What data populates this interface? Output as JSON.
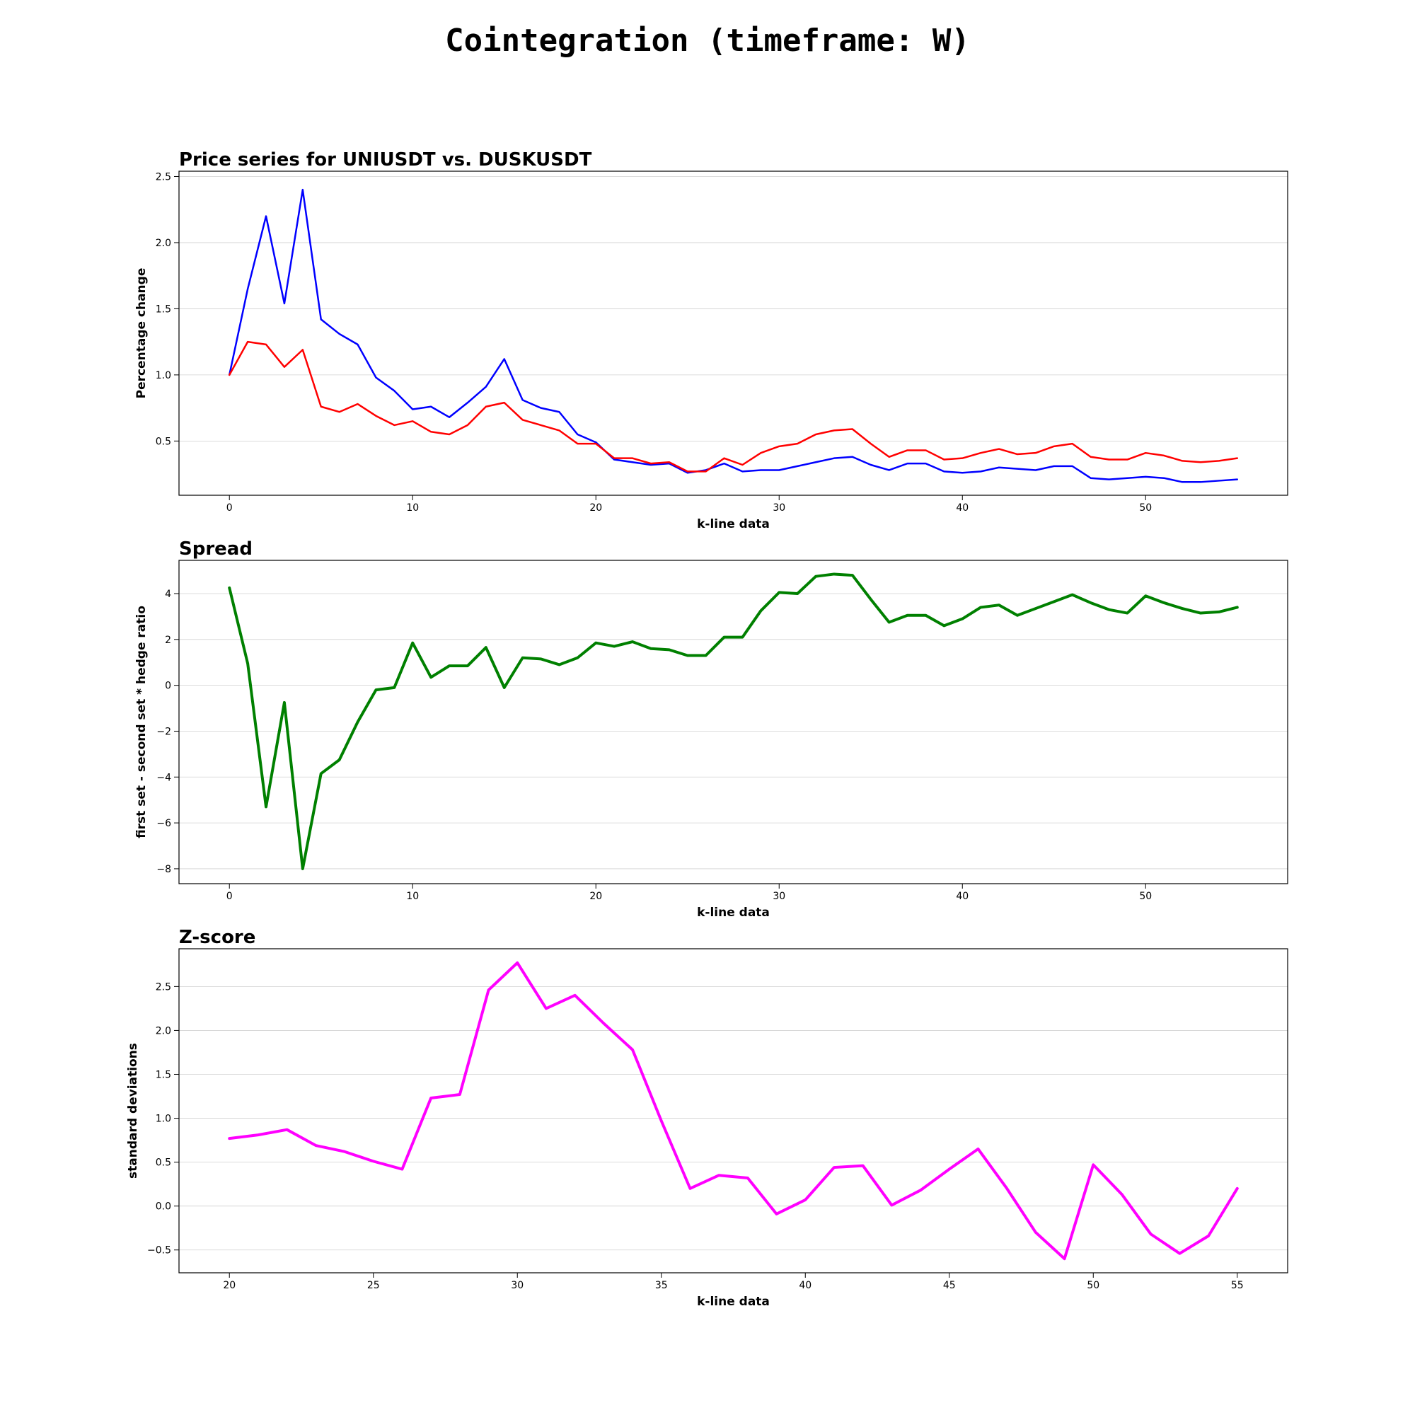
{
  "suptitle": "Cointegration (timeframe: W)",
  "chart_data": [
    {
      "type": "line",
      "title": "Price series for UNIUSDT vs. DUSKUSDT",
      "xlabel": "k-line data",
      "ylabel": "Percentage change",
      "xlim": [
        -2.75,
        57.75
      ],
      "ylim": [
        0.09,
        2.54
      ],
      "xticks": [
        0,
        10,
        20,
        30,
        40,
        50
      ],
      "yticks": [
        0.5,
        1.0,
        1.5,
        2.0,
        2.5
      ],
      "ytick_decimals": 1,
      "grid": "y",
      "x_start": 0,
      "series": [
        {
          "color": "#0000ff",
          "linewidth": 2.5,
          "values": [
            1.0,
            1.65,
            2.2,
            1.54,
            2.4,
            1.42,
            1.31,
            1.23,
            0.98,
            0.88,
            0.74,
            0.76,
            0.68,
            0.79,
            0.91,
            1.12,
            0.81,
            0.75,
            0.72,
            0.55,
            0.49,
            0.36,
            0.34,
            0.32,
            0.33,
            0.26,
            0.28,
            0.33,
            0.27,
            0.28,
            0.28,
            0.31,
            0.34,
            0.37,
            0.38,
            0.32,
            0.28,
            0.33,
            0.33,
            0.27,
            0.26,
            0.27,
            0.3,
            0.29,
            0.28,
            0.31,
            0.31,
            0.22,
            0.21,
            0.22,
            0.23,
            0.22,
            0.19,
            0.19,
            0.2,
            0.21
          ]
        },
        {
          "color": "#ff0000",
          "linewidth": 2.5,
          "values": [
            1.0,
            1.25,
            1.23,
            1.06,
            1.19,
            0.76,
            0.72,
            0.78,
            0.69,
            0.62,
            0.65,
            0.57,
            0.55,
            0.62,
            0.76,
            0.79,
            0.66,
            0.62,
            0.58,
            0.48,
            0.48,
            0.37,
            0.37,
            0.33,
            0.34,
            0.27,
            0.27,
            0.37,
            0.32,
            0.41,
            0.46,
            0.48,
            0.55,
            0.58,
            0.59,
            0.48,
            0.38,
            0.43,
            0.43,
            0.36,
            0.37,
            0.41,
            0.44,
            0.4,
            0.41,
            0.46,
            0.48,
            0.38,
            0.36,
            0.36,
            0.41,
            0.39,
            0.35,
            0.34,
            0.35,
            0.37
          ]
        }
      ]
    },
    {
      "type": "line",
      "title": "Spread",
      "xlabel": "k-line data",
      "ylabel": "first set - second set * hedge ratio",
      "xlim": [
        -2.75,
        57.75
      ],
      "ylim": [
        -8.65,
        5.45
      ],
      "xticks": [
        0,
        10,
        20,
        30,
        40,
        50
      ],
      "yticks": [
        -8,
        -6,
        -4,
        -2,
        0,
        2,
        4
      ],
      "ytick_decimals": 0,
      "grid": "y",
      "x_start": 0,
      "series": [
        {
          "color": "#008000",
          "linewidth": 4,
          "values": [
            4.25,
            0.95,
            -5.3,
            -0.75,
            -8.0,
            -3.85,
            -3.25,
            -1.6,
            -0.2,
            -0.1,
            1.85,
            0.35,
            0.85,
            0.85,
            1.65,
            -0.1,
            1.2,
            1.15,
            0.9,
            1.2,
            1.85,
            1.7,
            1.9,
            1.6,
            1.55,
            1.3,
            1.3,
            2.1,
            2.1,
            3.25,
            4.05,
            4.0,
            4.75,
            4.85,
            4.8,
            3.75,
            2.75,
            3.05,
            3.05,
            2.6,
            2.9,
            3.4,
            3.5,
            3.05,
            3.35,
            3.65,
            3.95,
            3.6,
            3.3,
            3.15,
            3.9,
            3.6,
            3.35,
            3.15,
            3.2,
            3.4
          ]
        }
      ]
    },
    {
      "type": "line",
      "title": "Z-score",
      "xlabel": "k-line data",
      "ylabel": "standard deviations",
      "xlim": [
        18.25,
        56.75
      ],
      "ylim": [
        -0.76,
        2.93
      ],
      "xticks": [
        20,
        25,
        30,
        35,
        40,
        45,
        50,
        55
      ],
      "yticks": [
        -0.5,
        0.0,
        0.5,
        1.0,
        1.5,
        2.0,
        2.5
      ],
      "ytick_decimals": 1,
      "grid": "y",
      "x_start": 20,
      "series": [
        {
          "color": "#ff00ff",
          "linewidth": 4,
          "values": [
            0.77,
            0.81,
            0.87,
            0.69,
            0.62,
            0.51,
            0.42,
            1.23,
            1.27,
            2.46,
            2.77,
            2.25,
            2.4,
            2.08,
            1.78,
            0.97,
            0.2,
            0.35,
            0.32,
            -0.09,
            0.07,
            0.44,
            0.46,
            0.01,
            0.18,
            0.42,
            0.65,
            0.2,
            -0.3,
            -0.6,
            0.47,
            0.13,
            -0.32,
            -0.54,
            -0.34,
            0.2
          ]
        }
      ]
    }
  ]
}
